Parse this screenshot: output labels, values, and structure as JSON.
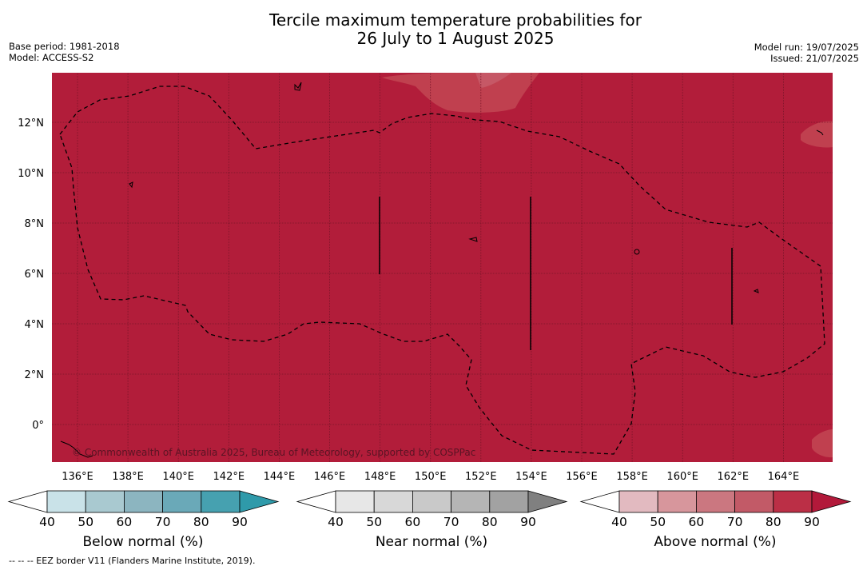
{
  "title_line1": "Tercile maximum temperature probabilities for",
  "title_line2": "26 July to 1 August 2025",
  "meta_left": [
    "Base period: 1981-2018",
    "Model: ACCESS-S2"
  ],
  "meta_right": [
    "Model run: 19/07/2025",
    "Issued: 21/07/2025"
  ],
  "map": {
    "lon_labels": [
      "136°E",
      "138°E",
      "140°E",
      "142°E",
      "144°E",
      "146°E",
      "148°E",
      "150°E",
      "152°E",
      "154°E",
      "156°E",
      "158°E",
      "160°E",
      "162°E",
      "164°E"
    ],
    "lat_labels": [
      "12°N",
      "10°N",
      "8°N",
      "6°N",
      "4°N",
      "2°N",
      "0°"
    ],
    "copyright": "© Commonwealth of Australia 2025, Bureau of Meteorology, supported by COSPPac",
    "fill_color": "#b21d3a",
    "dominant_category": "Above normal",
    "eez_style": "dashed"
  },
  "colorbars": [
    {
      "label": "Below normal (%)",
      "ticks": [
        "40",
        "50",
        "60",
        "70",
        "80",
        "90"
      ],
      "colors": [
        "#ffffff",
        "#c9e2e8",
        "#a9c9d0",
        "#8cb5c0",
        "#6aa9b8",
        "#46a1b0",
        "#2f9aaa"
      ]
    },
    {
      "label": "Near normal (%)",
      "ticks": [
        "40",
        "50",
        "60",
        "70",
        "80",
        "90"
      ],
      "colors": [
        "#ffffff",
        "#e7e7e7",
        "#d8d8d8",
        "#c9c9c9",
        "#b5b5b5",
        "#a2a2a2",
        "#808080"
      ]
    },
    {
      "label": "Above normal (%)",
      "ticks": [
        "40",
        "50",
        "60",
        "70",
        "80",
        "90"
      ],
      "colors": [
        "#ffffff",
        "#e2bac0",
        "#d7969c",
        "#cb7780",
        "#c25a67",
        "#bb2f46",
        "#b2193a"
      ]
    }
  ],
  "eez_note": "--  --  -- EEZ border V11 (Flanders Marine Institute, 2019)."
}
